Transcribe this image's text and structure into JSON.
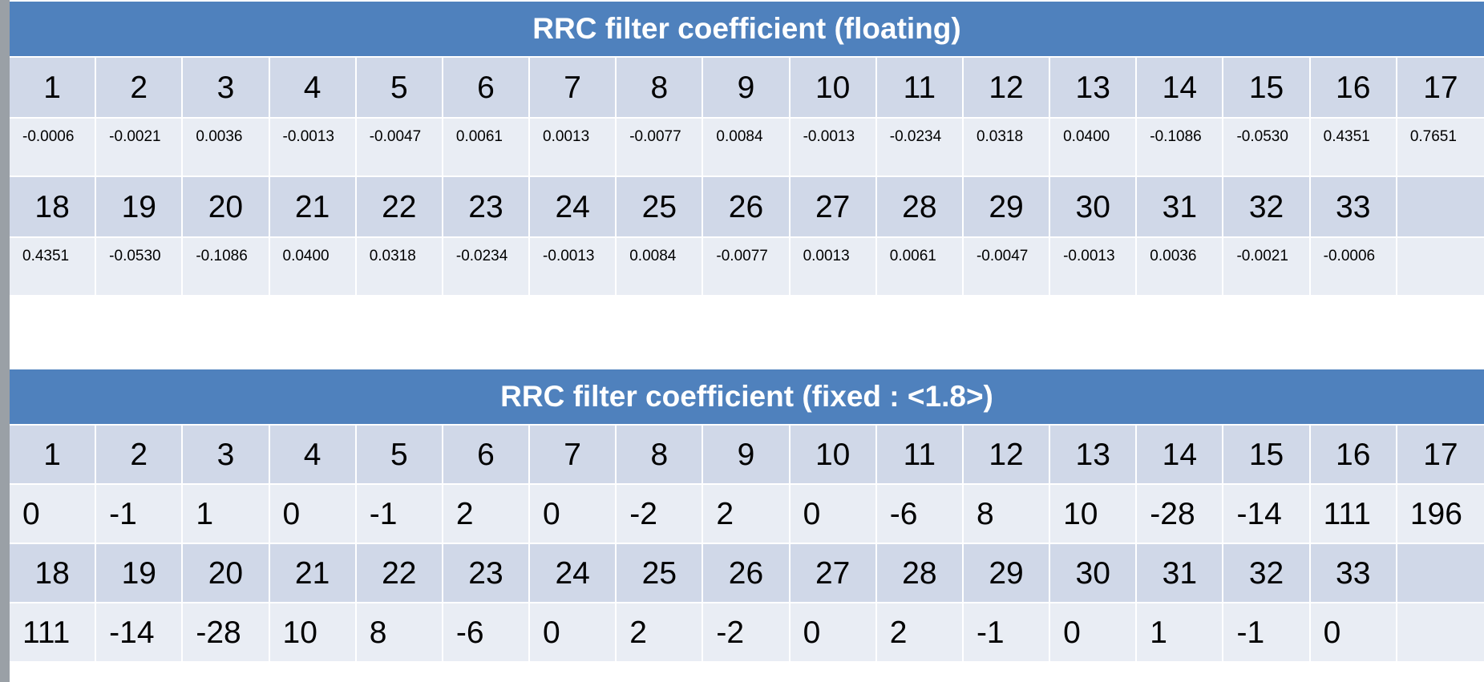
{
  "floating": {
    "title": "RRC filter coefficient (floating)",
    "rows": [
      {
        "indices": [
          "1",
          "2",
          "3",
          "4",
          "5",
          "6",
          "7",
          "8",
          "9",
          "10",
          "11",
          "12",
          "13",
          "14",
          "15",
          "16",
          "17"
        ],
        "values": [
          "-0.0006",
          "-0.0021",
          "0.0036",
          "-0.0013",
          "-0.0047",
          "0.0061",
          "0.0013",
          "-0.0077",
          "0.0084",
          "-0.0013",
          "-0.0234",
          "0.0318",
          "0.0400",
          "-0.1086",
          "-0.0530",
          "0.4351",
          "0.7651"
        ]
      },
      {
        "indices": [
          "18",
          "19",
          "20",
          "21",
          "22",
          "23",
          "24",
          "25",
          "26",
          "27",
          "28",
          "29",
          "30",
          "31",
          "32",
          "33",
          ""
        ],
        "values": [
          "0.4351",
          "-0.0530",
          "-0.1086",
          "0.0400",
          "0.0318",
          "-0.0234",
          "-0.0013",
          "0.0084",
          "-0.0077",
          "0.0013",
          "0.0061",
          "-0.0047",
          "-0.0013",
          "0.0036",
          "-0.0021",
          "-0.0006",
          ""
        ]
      }
    ]
  },
  "fixed": {
    "title": "RRC filter coefficient (fixed : <1.8>)",
    "rows": [
      {
        "indices": [
          "1",
          "2",
          "3",
          "4",
          "5",
          "6",
          "7",
          "8",
          "9",
          "10",
          "11",
          "12",
          "13",
          "14",
          "15",
          "16",
          "17"
        ],
        "values": [
          "0",
          "-1",
          "1",
          "0",
          "-1",
          "2",
          "0",
          "-2",
          "2",
          "0",
          "-6",
          "8",
          "10",
          "-28",
          "-14",
          "111",
          "196"
        ]
      },
      {
        "indices": [
          "18",
          "19",
          "20",
          "21",
          "22",
          "23",
          "24",
          "25",
          "26",
          "27",
          "28",
          "29",
          "30",
          "31",
          "32",
          "33",
          ""
        ],
        "values": [
          "111",
          "-14",
          "-28",
          "10",
          "8",
          "-6",
          "0",
          "2",
          "-2",
          "0",
          "2",
          "-1",
          "0",
          "1",
          "-1",
          "0",
          ""
        ]
      }
    ]
  }
}
